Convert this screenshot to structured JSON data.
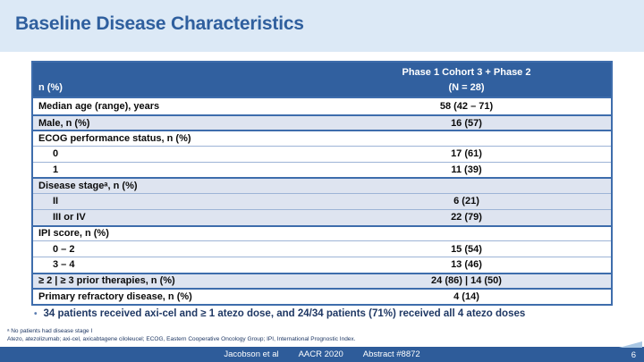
{
  "slide": {
    "title": "Baseline Disease Characteristics",
    "page_number": "6"
  },
  "table": {
    "header": {
      "left": "n (%)",
      "col_line1": "Phase 1 Cohort 3 + Phase 2",
      "col_line2": "(N = 28)"
    },
    "rows": [
      {
        "label": "Median age (range), years",
        "value": "58 (42 – 71)"
      },
      {
        "label": "Male, n (%)",
        "value": "16 (57)"
      },
      {
        "label": "ECOG performance status, n (%)",
        "value": ""
      },
      {
        "label": "0",
        "value": "17 (61)"
      },
      {
        "label": "1",
        "value": "11 (39)"
      },
      {
        "label": "Disease stageᵃ, n (%)",
        "value": ""
      },
      {
        "label": "II",
        "value": "6 (21)"
      },
      {
        "label": "III or IV",
        "value": "22 (79)"
      },
      {
        "label": "IPI score, n (%)",
        "value": ""
      },
      {
        "label": "0 – 2",
        "value": "15 (54)"
      },
      {
        "label": "3 – 4",
        "value": "13 (46)"
      },
      {
        "label": "≥ 2 | ≥ 3 prior therapies, n (%)",
        "value": "24 (86) | 14 (50)"
      },
      {
        "label": "Primary refractory disease, n (%)",
        "value": "4 (14)"
      }
    ]
  },
  "bullet": {
    "marker": "•",
    "text": "34 patients received axi-cel and ≥ 1 atezo dose, and 24/34 patients (71%) received all 4 atezo doses"
  },
  "footnotes": {
    "line1": "ᵃ No patients had disease stage I",
    "line2": "Atezo, atezolizumab; axi-cel, axicabtagene ciloleucel; ECOG, Eastern Cooperative Oncology Group; IPI, International Prognostic Index."
  },
  "footer": {
    "authors": "Jacobson et al",
    "conference": "AACR 2020",
    "abstract": "Abstract #8872"
  },
  "colors": {
    "title_band_bg": "#dce9f6",
    "title_text": "#2f5f9e",
    "table_header_bg": "#31609f",
    "table_border": "#3e6dac",
    "shaded_row_bg": "#dee4f0",
    "body_text": "#1f3864",
    "footer_bg": "#2e5c9a"
  }
}
